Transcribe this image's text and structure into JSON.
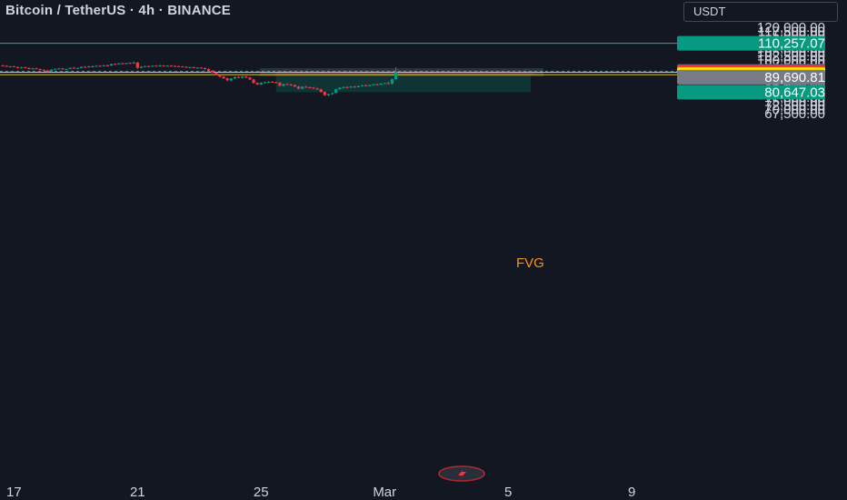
{
  "header": {
    "title": "Bitcoin / TetherUS · 4h · BINANCE",
    "currency": "USDT"
  },
  "colors": {
    "background": "#131722",
    "up": "#089981",
    "down": "#f23645",
    "teal_line": "#26a69a",
    "yellow_line": "#f0c419",
    "text": "#d1d4dc"
  },
  "chart_data": {
    "type": "candlestick",
    "y_axis": {
      "ylim": [
        66250,
        121250
      ],
      "ticks": [
        "120,000.00",
        "117,500.00",
        "115,000.00",
        "112,500.00",
        "107,500.00",
        "105,000.00",
        "102,500.00",
        "100,000.00",
        "97,500.00",
        "95,000.00",
        "85,000.00",
        "82,500.00",
        "77,500.00",
        "75,000.00",
        "72,500.00",
        "70,000.00",
        "67,500.00"
      ],
      "tick_values": [
        120000,
        117500,
        115000,
        112500,
        107500,
        105000,
        102500,
        100000,
        97500,
        95000,
        85000,
        82500,
        77500,
        75000,
        72500,
        70000,
        67500
      ]
    },
    "x_axis": {
      "labels": [
        "17",
        "21",
        "25",
        "Mar",
        "5",
        "9"
      ],
      "label_bars": [
        3,
        36,
        69,
        102,
        135,
        168
      ]
    },
    "horizontal_lines": [
      {
        "value": 110257.07,
        "color": "#26a69a"
      },
      {
        "value": 92667.96,
        "color": "#f0c419"
      },
      {
        "value": 91235.22,
        "color": "#f0c419"
      }
    ],
    "price_badges": [
      {
        "text": "110,257.07",
        "value": 110257.07,
        "bg": "#089981",
        "fg": "#ffffff"
      },
      {
        "text": "93,292.53",
        "value": 93292.53,
        "bg": "#434651",
        "fg": "#ffffff"
      },
      {
        "text": "92,838.05",
        "value": 92838.05,
        "bg": "#089981",
        "fg": "#ffffff"
      },
      {
        "text": "01:11:29",
        "value": 91650,
        "bg": "#089981",
        "fg": "#ffffff"
      },
      {
        "text": "92,667.96",
        "value": 92667.96,
        "bg": "#f23645",
        "fg": "#ffffff"
      },
      {
        "text": "91,235.22",
        "value": 91235.22,
        "bg": "#f7e600",
        "fg": "#131722"
      },
      {
        "text": "89,690.81",
        "value": 89690.81,
        "bg": "#787b86",
        "fg": "#ffffff"
      },
      {
        "text": "80,647.03",
        "value": 80647.03,
        "bg": "#089981",
        "fg": "#ffffff"
      }
    ],
    "fvg_zone": {
      "label": "FVG",
      "top": 93300,
      "bottom": 91300,
      "start_bar": 73,
      "end_bar": 142
    },
    "position_box": {
      "entry": 91235.22,
      "target": 80647.03,
      "start_bar": 73,
      "end_bar": 141
    },
    "candles": [
      [
        96800,
        97200,
        96300,
        96600
      ],
      [
        96600,
        96900,
        95900,
        96100
      ],
      [
        96100,
        96500,
        95600,
        96300
      ],
      [
        96300,
        96600,
        95700,
        95800
      ],
      [
        95800,
        96200,
        95300,
        95500
      ],
      [
        95500,
        96000,
        94900,
        95800
      ],
      [
        95800,
        96100,
        95100,
        95300
      ],
      [
        95300,
        95600,
        94400,
        94700
      ],
      [
        94700,
        95300,
        94200,
        95100
      ],
      [
        95100,
        95500,
        94500,
        94600
      ],
      [
        94600,
        95000,
        93800,
        94200
      ],
      [
        94200,
        94500,
        93600,
        93800
      ],
      [
        93800,
        94200,
        92700,
        93000
      ],
      [
        93000,
        94500,
        92800,
        94300
      ],
      [
        94300,
        95000,
        93900,
        94800
      ],
      [
        94800,
        95300,
        94300,
        95000
      ],
      [
        95000,
        95400,
        94300,
        94500
      ],
      [
        94500,
        94900,
        94100,
        94700
      ],
      [
        94700,
        95600,
        94500,
        95400
      ],
      [
        95400,
        95900,
        94900,
        95100
      ],
      [
        95100,
        95500,
        94700,
        95300
      ],
      [
        95300,
        96200,
        95100,
        96000
      ],
      [
        96000,
        96400,
        95500,
        95700
      ],
      [
        95700,
        96600,
        95500,
        96300
      ],
      [
        96300,
        96800,
        95900,
        96200
      ],
      [
        96200,
        96900,
        96000,
        96600
      ],
      [
        96600,
        97000,
        96200,
        96500
      ],
      [
        96500,
        97100,
        96200,
        96900
      ],
      [
        96900,
        97400,
        96500,
        96700
      ],
      [
        96700,
        97900,
        96600,
        97700
      ],
      [
        97700,
        98200,
        97300,
        97500
      ],
      [
        97500,
        98300,
        97400,
        98100
      ],
      [
        98100,
        98600,
        97800,
        98000
      ],
      [
        98000,
        98400,
        97500,
        98300
      ],
      [
        98300,
        98700,
        97900,
        98100
      ],
      [
        98100,
        99300,
        97900,
        98600
      ],
      [
        98600,
        98900,
        94800,
        95400
      ],
      [
        95400,
        96400,
        95100,
        96100
      ],
      [
        96100,
        96700,
        95800,
        96400
      ],
      [
        96400,
        96800,
        95900,
        96200
      ],
      [
        96200,
        96900,
        96000,
        96700
      ],
      [
        96700,
        97100,
        96300,
        96500
      ],
      [
        96500,
        97200,
        96100,
        96800
      ],
      [
        96800,
        97100,
        96400,
        96600
      ],
      [
        96600,
        96900,
        96200,
        96700
      ],
      [
        96700,
        97000,
        96300,
        96500
      ],
      [
        96500,
        96800,
        96100,
        96400
      ],
      [
        96400,
        96700,
        95900,
        96200
      ],
      [
        96200,
        96500,
        95800,
        96000
      ],
      [
        96000,
        96300,
        95300,
        95500
      ],
      [
        95500,
        96000,
        95200,
        95800
      ],
      [
        95800,
        96100,
        95100,
        95300
      ],
      [
        95300,
        95700,
        94900,
        95500
      ],
      [
        95500,
        95800,
        95000,
        95200
      ],
      [
        95200,
        95600,
        94300,
        94600
      ],
      [
        94600,
        95000,
        93400,
        93700
      ],
      [
        93700,
        94000,
        92100,
        92400
      ],
      [
        92400,
        92700,
        90800,
        91100
      ],
      [
        91100,
        91500,
        89600,
        90000
      ],
      [
        90000,
        90400,
        88700,
        89000
      ],
      [
        89000,
        89400,
        87300,
        87800
      ],
      [
        87800,
        89200,
        87200,
        88900
      ],
      [
        88900,
        90100,
        88500,
        89800
      ],
      [
        89800,
        90300,
        89100,
        89400
      ],
      [
        89400,
        90400,
        89000,
        90100
      ],
      [
        90100,
        90500,
        89200,
        89500
      ],
      [
        89500,
        89900,
        88000,
        88300
      ],
      [
        88300,
        88700,
        85800,
        86200
      ],
      [
        86200,
        86600,
        84900,
        85300
      ],
      [
        85300,
        86600,
        85000,
        86300
      ],
      [
        86300,
        87000,
        85800,
        86700
      ],
      [
        86700,
        87300,
        86200,
        86900
      ],
      [
        86900,
        87400,
        86400,
        86600
      ],
      [
        86600,
        87100,
        86000,
        86400
      ],
      [
        86400,
        86800,
        84200,
        84500
      ],
      [
        84500,
        85800,
        84100,
        85500
      ],
      [
        85500,
        86100,
        85000,
        85300
      ],
      [
        85300,
        85700,
        84500,
        84900
      ],
      [
        84900,
        85300,
        83700,
        84000
      ],
      [
        84000,
        84400,
        82400,
        82700
      ],
      [
        82700,
        84200,
        82400,
        83900
      ],
      [
        83900,
        84500,
        83300,
        83600
      ],
      [
        83600,
        84100,
        83100,
        83400
      ],
      [
        83400,
        83800,
        82600,
        82900
      ],
      [
        82900,
        83300,
        82000,
        82300
      ],
      [
        82300,
        82700,
        80400,
        80700
      ],
      [
        80700,
        81100,
        78400,
        78800
      ],
      [
        78800,
        79800,
        78100,
        79500
      ],
      [
        79500,
        80400,
        78900,
        80100
      ],
      [
        80100,
        82700,
        79900,
        82400
      ],
      [
        82400,
        83600,
        82100,
        83300
      ],
      [
        83300,
        84000,
        82800,
        83700
      ],
      [
        83700,
        84200,
        83200,
        83500
      ],
      [
        83500,
        84300,
        83100,
        84000
      ],
      [
        84000,
        84500,
        83300,
        83700
      ],
      [
        83700,
        84600,
        83500,
        84300
      ],
      [
        84300,
        85100,
        84000,
        84800
      ],
      [
        84800,
        85300,
        84200,
        84500
      ],
      [
        84500,
        85200,
        84100,
        84900
      ],
      [
        84900,
        85700,
        84600,
        85400
      ],
      [
        85400,
        85800,
        84800,
        85100
      ],
      [
        85100,
        86100,
        84900,
        85800
      ],
      [
        85800,
        86400,
        85500,
        86100
      ],
      [
        86100,
        86800,
        85400,
        85700
      ],
      [
        85700,
        88800,
        85300,
        88500
      ],
      [
        88500,
        95800,
        88200,
        92838
      ]
    ]
  }
}
